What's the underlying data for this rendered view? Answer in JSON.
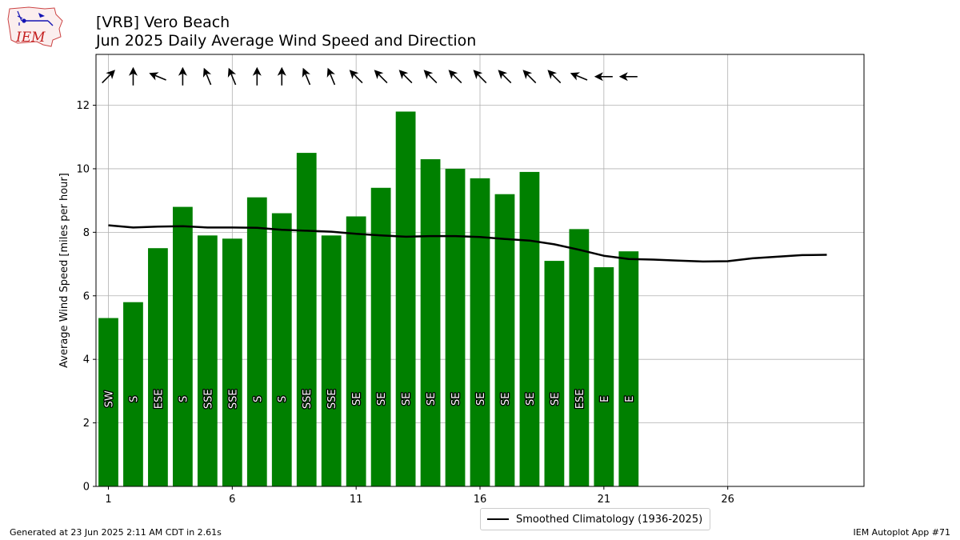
{
  "title": "[VRB] Vero Beach",
  "subtitle": "Jun 2025 Daily Average Wind Speed and Direction",
  "footer_left": "Generated at 23 Jun 2025 2:11 AM CDT in 2.61s",
  "footer_right": "IEM Autoplot App #71",
  "logo_text": "IEM",
  "colors": {
    "bar": "#008000",
    "climatology": "#000000",
    "grid": "#b0b0b0"
  },
  "chart_data": {
    "type": "bar",
    "xlabel": "",
    "ylabel": "Average Wind Speed [miles per hour]",
    "xlim": [
      0.5,
      31.5
    ],
    "ylim": [
      0,
      13.6
    ],
    "xticks": [
      1,
      6,
      11,
      16,
      21,
      26
    ],
    "yticks": [
      0,
      2,
      4,
      6,
      8,
      10,
      12
    ],
    "grid": true,
    "legend": "bottom-center",
    "days": [
      1,
      2,
      3,
      4,
      5,
      6,
      7,
      8,
      9,
      10,
      11,
      12,
      13,
      14,
      15,
      16,
      17,
      18,
      19,
      20,
      21,
      22
    ],
    "values": [
      5.3,
      5.8,
      7.5,
      8.8,
      7.9,
      7.8,
      9.1,
      8.6,
      10.5,
      7.9,
      8.5,
      9.4,
      11.8,
      10.3,
      10.0,
      9.7,
      9.2,
      9.9,
      7.1,
      8.1,
      6.9,
      7.4
    ],
    "direction_labels": [
      "SW",
      "S",
      "ESE",
      "S",
      "SSE",
      "SSE",
      "S",
      "S",
      "SSE",
      "SSE",
      "SE",
      "SE",
      "SE",
      "SE",
      "SE",
      "SE",
      "SE",
      "SE",
      "SE",
      "ESE",
      "E",
      "E"
    ],
    "direction_degrees": [
      225,
      180,
      112.5,
      180,
      157.5,
      157.5,
      180,
      180,
      157.5,
      157.5,
      135,
      135,
      135,
      135,
      135,
      135,
      135,
      135,
      135,
      112.5,
      90,
      90
    ],
    "series": [
      {
        "name": "Smoothed Climatology (1936-2025)",
        "type": "line",
        "x": [
          1,
          2,
          3,
          4,
          5,
          6,
          7,
          8,
          9,
          10,
          11,
          12,
          13,
          14,
          15,
          16,
          17,
          18,
          19,
          20,
          21,
          22,
          23,
          24,
          25,
          26,
          27,
          28,
          29,
          30
        ],
        "y": [
          8.22,
          8.15,
          8.18,
          8.19,
          8.15,
          8.15,
          8.14,
          8.08,
          8.05,
          8.02,
          7.95,
          7.9,
          7.86,
          7.88,
          7.88,
          7.85,
          7.79,
          7.74,
          7.62,
          7.45,
          7.26,
          7.16,
          7.14,
          7.11,
          7.08,
          7.09,
          7.18,
          7.23,
          7.28,
          7.29
        ]
      }
    ]
  }
}
